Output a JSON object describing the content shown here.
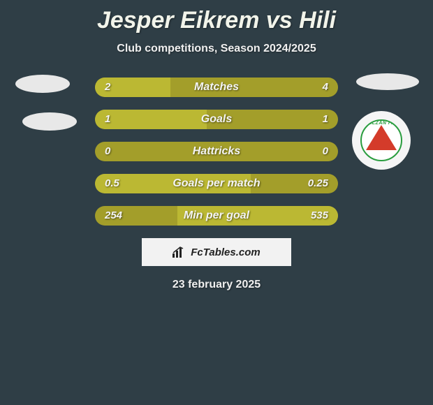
{
  "title": "Jesper Eikrem vs Hili",
  "subtitle": "Club competitions, Season 2024/2025",
  "date": "23 february 2025",
  "branding_text": "FcTables.com",
  "crest_text": "BALZAN F.C.",
  "colors": {
    "background": "#2f3e46",
    "bar_track": "#a39e2a",
    "bar_fill": "#bbb833",
    "text": "#f4f4f4",
    "crest_green": "#2a9d3f",
    "crest_red": "#d43b2a"
  },
  "bars": [
    {
      "label": "Matches",
      "left": "2",
      "right": "4",
      "left_pct": 31,
      "right_pct": 0
    },
    {
      "label": "Goals",
      "left": "1",
      "right": "1",
      "left_pct": 46,
      "right_pct": 0
    },
    {
      "label": "Hattricks",
      "left": "0",
      "right": "0",
      "left_pct": 0,
      "right_pct": 0
    },
    {
      "label": "Goals per match",
      "left": "0.5",
      "right": "0.25",
      "left_pct": 64,
      "right_pct": 0
    },
    {
      "label": "Min per goal",
      "left": "254",
      "right": "535",
      "left_pct": 0,
      "right_pct": 66
    }
  ]
}
